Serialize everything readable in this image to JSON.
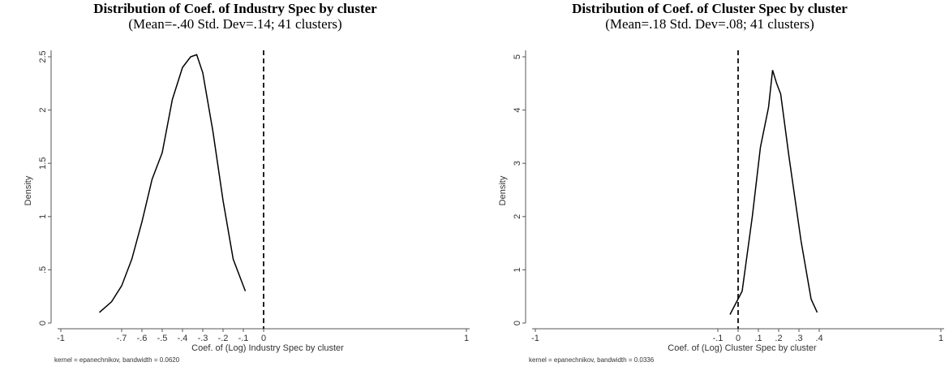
{
  "chart_data": [
    {
      "type": "line",
      "title": "Distribution of Coef. of Industry Spec by cluster",
      "subtitle": "(Mean=-.40 Std. Dev=.14; 41 clusters)",
      "x_label": "Coef. of (Log) Industry Spec by cluster",
      "y_label": "Density",
      "note": "kernel = epanechnikov, bandwidth = 0.0620",
      "x": [
        -0.81,
        -0.75,
        -0.7,
        -0.65,
        -0.6,
        -0.55,
        -0.5,
        -0.45,
        -0.4,
        -0.36,
        -0.33,
        -0.3,
        -0.25,
        -0.2,
        -0.15,
        -0.1,
        -0.09
      ],
      "values": [
        0.1,
        0.2,
        0.35,
        0.6,
        0.95,
        1.35,
        1.6,
        2.1,
        2.4,
        2.5,
        2.52,
        2.35,
        1.8,
        1.15,
        0.6,
        0.35,
        0.3
      ],
      "color": "#000000",
      "vline": 0,
      "xlim": [
        -1,
        1
      ],
      "ylim": [
        0,
        2.5
      ],
      "xticks": [
        -1,
        {
          "value": -0.7,
          "label": "-.7"
        },
        {
          "value": -0.6,
          "label": "-.6"
        },
        {
          "value": -0.5,
          "label": "-.5"
        },
        {
          "value": -0.4,
          "label": "-.4"
        },
        {
          "value": -0.3,
          "label": "-.3"
        },
        {
          "value": -0.2,
          "label": "-.2"
        },
        {
          "value": -0.1,
          "label": "-.1"
        },
        0,
        1
      ],
      "yticks": [
        0,
        {
          "value": 0.5,
          "label": ".5"
        },
        1,
        1.5,
        2,
        2.5
      ]
    },
    {
      "type": "line",
      "title": "Distribution of Coef. of Cluster Spec by cluster",
      "subtitle": "(Mean=.18 Std. Dev=.08; 41 clusters)",
      "x_label": "Coef. of (Log) Cluster Spec  by cluster",
      "y_label": "Density",
      "note": "kernel = epanechnikov, bandwidth = 0.0336",
      "x": [
        -0.04,
        0.02,
        0.07,
        0.11,
        0.15,
        0.17,
        0.19,
        0.21,
        0.25,
        0.31,
        0.36,
        0.39
      ],
      "values": [
        0.16,
        0.6,
        2.0,
        3.3,
        4.05,
        4.75,
        4.5,
        4.3,
        3.15,
        1.55,
        0.45,
        0.2
      ],
      "color": "#000000",
      "vline": 0,
      "xlim": [
        -1,
        1
      ],
      "ylim": [
        0,
        5
      ],
      "xticks": [
        -1,
        {
          "value": -0.1,
          "label": "-.1"
        },
        0,
        {
          "value": 0.1,
          "label": ".1"
        },
        {
          "value": 0.2,
          "label": ".2"
        },
        {
          "value": 0.3,
          "label": ".3"
        },
        {
          "value": 0.4,
          "label": ".4"
        },
        1
      ],
      "yticks": [
        0,
        1,
        2,
        3,
        4,
        5
      ]
    }
  ]
}
